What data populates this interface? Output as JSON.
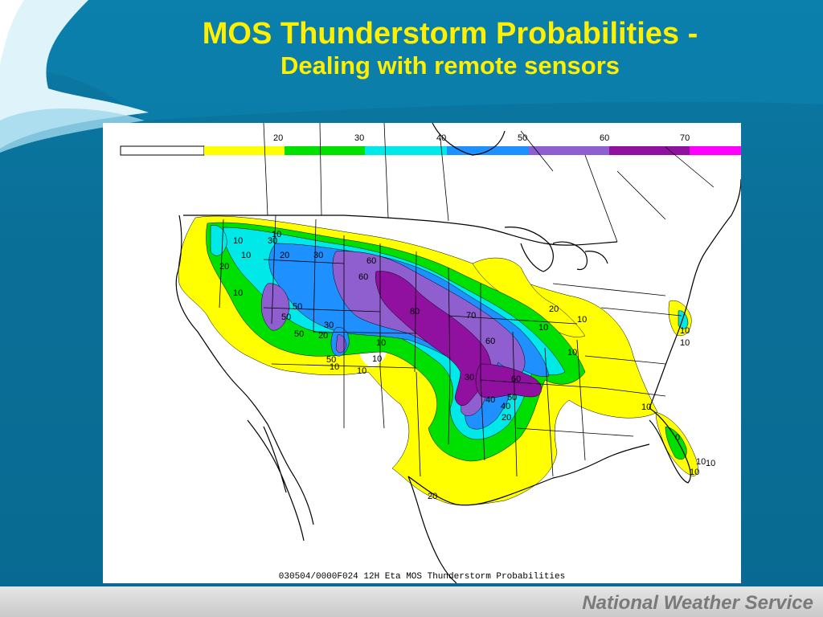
{
  "slide": {
    "title": "MOS Thunderstorm Probabilities -",
    "subtitle": "Dealing with remote sensors",
    "footer": "National Weather Service"
  },
  "map": {
    "caption": "030504/0000F024 12H Eta MOS Thunderstorm Probabilities",
    "scale": {
      "tick_labels": [
        "20",
        "30",
        "40",
        "50",
        "60",
        "70"
      ],
      "colors": [
        "#ffff00",
        "#00e000",
        "#00e8e8",
        "#1e90ff",
        "#8f5fcf",
        "#9010a0",
        "#ff00ff"
      ]
    },
    "contour_labels": [
      "10",
      "10",
      "20",
      "30",
      "30",
      "20",
      "10",
      "10",
      "60",
      "60",
      "50",
      "50",
      "50",
      "20",
      "30",
      "10",
      "10",
      "10",
      "50",
      "10",
      "80",
      "70",
      "60",
      "30",
      "60",
      "40",
      "50",
      "40",
      "20",
      "20",
      "10",
      "10",
      "10",
      "10",
      "10",
      "10",
      "20",
      "10",
      "0",
      "10",
      "10"
    ],
    "colors": {
      "yellow": "#ffff00",
      "green": "#00e000",
      "cyan": "#00e8e8",
      "blue": "#1e90ff",
      "purple": "#8f5fcf",
      "violet": "#9010a0"
    }
  }
}
